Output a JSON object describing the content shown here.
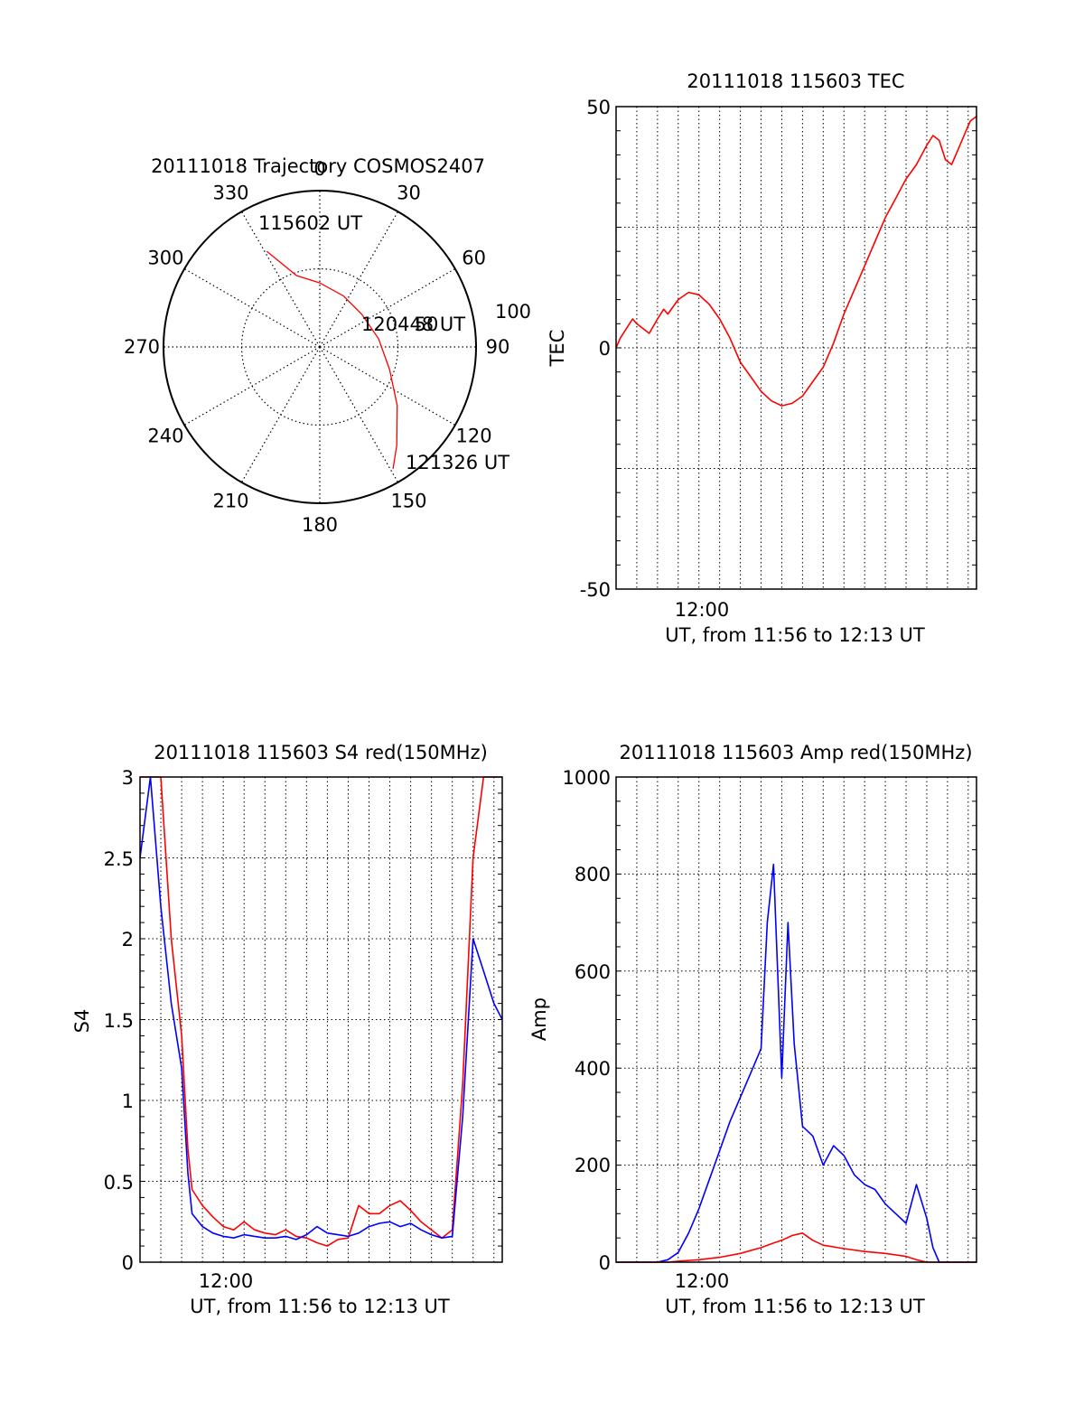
{
  "chart_data": [
    {
      "type": "polar",
      "title": "20111018 Trajectory COSMOS2407",
      "angle_labels": [
        "0",
        "30",
        "60",
        "90",
        "120",
        "150",
        "180",
        "210",
        "240",
        "270",
        "300",
        "330"
      ],
      "radial_labels": [
        "50",
        "100"
      ],
      "rmax": 100,
      "series": [
        {
          "color": "#ff0000",
          "points": [
            {
              "az": 331,
              "r": 70
            },
            {
              "az": 342,
              "r": 48
            },
            {
              "az": 0,
              "r": 41
            },
            {
              "az": 25,
              "r": 36
            },
            {
              "az": 52,
              "r": 34
            },
            {
              "az": 82,
              "r": 38
            },
            {
              "az": 108,
              "r": 47
            },
            {
              "az": 127,
              "r": 62
            },
            {
              "az": 142,
              "r": 80
            },
            {
              "az": 149,
              "r": 91
            }
          ]
        }
      ],
      "annotations": [
        "115602 UT",
        "120448 UT",
        "121326 UT"
      ]
    },
    {
      "type": "line",
      "title": "20111018 115603 TEC",
      "xlabel": "UT, from 11:56 to 12:13 UT",
      "ylabel": "TEC",
      "xlim": [
        0,
        17.4
      ],
      "ylim": [
        -50,
        50
      ],
      "y_ticks": [
        "50",
        "0",
        "-50"
      ],
      "x_tick_label": "12:00",
      "series": [
        {
          "color": "#ff0000",
          "x": [
            0,
            0.2,
            0.5,
            0.8,
            1.0,
            1.3,
            1.6,
            2.0,
            2.3,
            2.5,
            3.0,
            3.5,
            4.0,
            4.5,
            5.0,
            5.5,
            6.0,
            6.5,
            7.0,
            7.5,
            8.0,
            8.5,
            9.0,
            9.5,
            10.0,
            10.5,
            11.0,
            11.5,
            12.0,
            12.5,
            13.0,
            13.5,
            14.0,
            14.5,
            15.0,
            15.3,
            15.6,
            15.9,
            16.2,
            16.5,
            16.8,
            17.1,
            17.4
          ],
          "y": [
            0,
            2,
            4,
            6,
            5,
            4,
            3,
            6,
            8,
            7,
            10,
            11.5,
            11,
            9,
            6,
            2,
            -3,
            -6,
            -9,
            -11,
            -12,
            -11.5,
            -10,
            -7,
            -4,
            1,
            7,
            12,
            17,
            22,
            27,
            31,
            35,
            38,
            42,
            44,
            43,
            39,
            38,
            41,
            44,
            47,
            48
          ]
        }
      ]
    },
    {
      "type": "line",
      "title": "20111018 115603 S4 red(150MHz)",
      "xlabel": "UT, from 11:56 to 12:13 UT",
      "ylabel": "S4",
      "xlim": [
        0,
        17.4
      ],
      "ylim": [
        0,
        3
      ],
      "y_ticks": [
        "3",
        "2.5",
        "2",
        "1.5",
        "1",
        "0.5",
        "0"
      ],
      "x_tick_label": "12:00",
      "series": [
        {
          "color": "#ff0000",
          "x": [
            0,
            0.5,
            1.0,
            1.5,
            2.0,
            2.3,
            2.5,
            3.0,
            3.5,
            4.0,
            4.5,
            5.0,
            5.5,
            6.0,
            6.5,
            7.0,
            7.5,
            8.0,
            8.5,
            9.0,
            9.5,
            10.0,
            10.5,
            11.0,
            11.5,
            12.0,
            12.5,
            13.0,
            13.5,
            14.0,
            14.5,
            15.0,
            15.5,
            16.0,
            16.5,
            17.0,
            17.4
          ],
          "y": [
            3,
            3,
            3,
            2.0,
            1.4,
            0.7,
            0.45,
            0.35,
            0.28,
            0.22,
            0.2,
            0.25,
            0.2,
            0.18,
            0.17,
            0.2,
            0.16,
            0.15,
            0.12,
            0.1,
            0.14,
            0.15,
            0.35,
            0.3,
            0.3,
            0.35,
            0.38,
            0.32,
            0.25,
            0.2,
            0.15,
            0.2,
            1.1,
            2.5,
            3,
            3,
            3
          ]
        },
        {
          "color": "#0000ff",
          "x": [
            0,
            0.5,
            1.0,
            1.5,
            2.0,
            2.3,
            2.5,
            3.0,
            3.5,
            4.0,
            4.5,
            5.0,
            5.5,
            6.0,
            6.5,
            7.0,
            7.5,
            8.0,
            8.5,
            9.0,
            9.5,
            10.0,
            10.5,
            11.0,
            11.5,
            12.0,
            12.5,
            13.0,
            13.5,
            14.0,
            14.5,
            15.0,
            15.5,
            16.0,
            16.5,
            17.0,
            17.4
          ],
          "y": [
            2.5,
            3,
            2.2,
            1.6,
            1.2,
            0.55,
            0.3,
            0.22,
            0.18,
            0.16,
            0.15,
            0.17,
            0.16,
            0.15,
            0.15,
            0.16,
            0.14,
            0.17,
            0.22,
            0.18,
            0.17,
            0.16,
            0.18,
            0.22,
            0.24,
            0.25,
            0.22,
            0.24,
            0.2,
            0.17,
            0.15,
            0.16,
            0.9,
            2.0,
            1.8,
            1.6,
            1.5
          ]
        }
      ]
    },
    {
      "type": "line",
      "title": "20111018 115603 Amp red(150MHz)",
      "xlabel": "UT, from 11:56 to 12:13 UT",
      "ylabel": "Amp",
      "xlim": [
        0,
        17.4
      ],
      "ylim": [
        0,
        1000
      ],
      "y_ticks": [
        "1000",
        "800",
        "600",
        "400",
        "200",
        "0"
      ],
      "x_tick_label": "12:00",
      "series": [
        {
          "color": "#0000ff",
          "x": [
            0,
            2.0,
            2.5,
            3.0,
            3.5,
            4.0,
            4.5,
            5.0,
            5.5,
            6.0,
            6.5,
            7.0,
            7.3,
            7.6,
            8.0,
            8.3,
            8.6,
            9.0,
            9.5,
            10.0,
            10.5,
            11.0,
            11.5,
            12.0,
            12.5,
            13.0,
            13.5,
            14.0,
            14.5,
            15.0,
            15.3,
            15.6,
            16.0,
            17.4
          ],
          "y": [
            0,
            0,
            5,
            20,
            60,
            110,
            170,
            230,
            290,
            340,
            390,
            440,
            700,
            820,
            380,
            700,
            450,
            280,
            260,
            200,
            240,
            220,
            180,
            160,
            150,
            120,
            100,
            80,
            160,
            90,
            30,
            0,
            0,
            0
          ]
        },
        {
          "color": "#ff0000",
          "x": [
            0,
            2.5,
            3.0,
            4.0,
            5.0,
            6.0,
            7.0,
            7.5,
            8.0,
            8.5,
            9.0,
            9.5,
            10.0,
            11.0,
            12.0,
            13.0,
            14.0,
            14.5,
            15.0,
            17.4
          ],
          "y": [
            0,
            0,
            2,
            5,
            10,
            18,
            30,
            38,
            45,
            55,
            60,
            45,
            35,
            28,
            22,
            18,
            12,
            5,
            0,
            0
          ]
        }
      ]
    }
  ]
}
